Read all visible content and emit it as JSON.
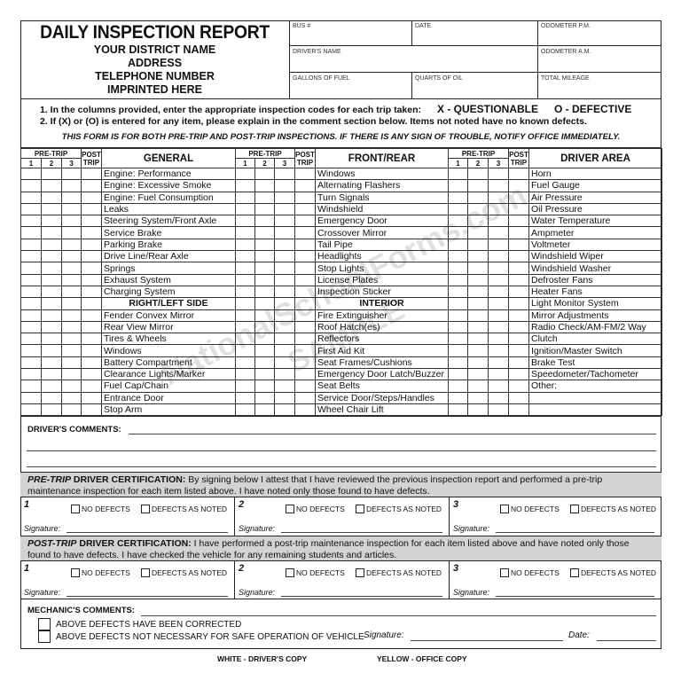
{
  "header": {
    "title": "DAILY INSPECTION REPORT",
    "district_lines": [
      "YOUR DISTRICT NAME",
      "ADDRESS",
      "TELEPHONE NUMBER",
      "IMPRINTED HERE"
    ],
    "fields": {
      "bus": "BUS #",
      "date": "DATE",
      "odometer_pm": "ODOMETER P.M.",
      "drivers_name": "DRIVER'S NAME",
      "odometer_am": "ODOMETER A.M.",
      "gallons_fuel": "GALLONS OF FUEL",
      "quarts_oil": "QUARTS OF OIL",
      "total_mileage": "TOTAL MILEAGE"
    }
  },
  "instructions": {
    "line1": "1.  In the columns provided, enter the appropriate inspection codes for each trip taken:",
    "code_x": "X - QUESTIONABLE",
    "code_o": "O - DEFECTIVE",
    "line2": "2.  If  (X)  or  (O)  is entered for any item, please explain in the comment section below.  Items not noted have no known defects.",
    "note": "THIS FORM IS FOR BOTH PRE-TRIP AND POST-TRIP INSPECTIONS.  IF THERE IS ANY SIGN OF TROUBLE, NOTIFY OFFICE IMMEDIATELY."
  },
  "table": {
    "pre_trip": "PRE-TRIP",
    "post": "POST",
    "trip": "TRIP",
    "trip_numbers": [
      "1",
      "2",
      "3"
    ],
    "sections": [
      {
        "heading": "GENERAL",
        "items": [
          "Engine:   Performance",
          "Engine:   Excessive Smoke",
          "Engine:   Fuel Consumption",
          "Leaks",
          "Steering System/Front Axle",
          "Service Brake",
          "Parking Brake",
          "Drive Line/Rear Axle",
          "Springs",
          "Exhaust System",
          "Charging System",
          "#RIGHT/LEFT SIDE",
          "Fender Convex Mirror",
          "Rear View Mirror",
          "Tires & Wheels",
          "Windows",
          "Battery Compartment",
          "Clearance Lights/Marker",
          "Fuel Cap/Chain",
          "Entrance Door",
          "Stop Arm"
        ]
      },
      {
        "heading": "FRONT/REAR",
        "items": [
          "Windows",
          "Alternating Flashers",
          "Turn Signals",
          "Windshield",
          "Emergency Door",
          "Crossover Mirror",
          "Tail Pipe",
          "Headlights",
          "Stop Lights",
          "License Plates",
          "Inspection Sticker",
          "#INTERIOR",
          "Fire Extinguisher",
          "Roof Hatch(es)",
          "Reflectors",
          "First Aid Kit",
          "Seat Frames/Cushions",
          "Emergency Door Latch/Buzzer",
          "Seat Belts",
          "Service Door/Steps/Handles",
          "Wheel Chair Lift"
        ]
      },
      {
        "heading": "DRIVER AREA",
        "items": [
          "Horn",
          "Fuel Gauge",
          "Air Pressure",
          "Oil Pressure",
          "Water Temperature",
          "Ampmeter",
          "Voltmeter",
          "Windshield Wiper",
          "Windshield Washer",
          "Defroster Fans",
          "Heater Fans",
          "Light Monitor System",
          "Mirror Adjustments",
          "Radio Check/AM-FM/2 Way",
          "Clutch",
          "Ignition/Master Switch",
          "Brake Test",
          "Speedometer/Tachometer",
          "Other:",
          "",
          ""
        ]
      }
    ]
  },
  "drivers_comments": "DRIVER'S COMMENTS:",
  "pre_cert": {
    "label_italic": "PRE-TRIP",
    "label": " DRIVER CERTIFICATION:",
    "text": "  By signing below I attest that I have reviewed the previous inspection report and performed a pre-trip maintenance inspection for each item listed above.  I have noted only those found to have defects."
  },
  "post_cert": {
    "label_italic": "POST-TRIP",
    "label": " DRIVER CERTIFICATION:",
    "text": "  I have performed a post-trip maintenance inspection for each item listed above and have noted only those found to have defects.  I have checked the vehicle for any remaining students and articles."
  },
  "cert_common": {
    "numbers": [
      "1",
      "2",
      "3"
    ],
    "no_defects": "NO DEFECTS",
    "defects_noted": "DEFECTS AS NOTED",
    "signature": "Signature:"
  },
  "mechanic": {
    "label": "MECHANIC'S COMMENTS:",
    "corrected": "ABOVE DEFECTS HAVE BEEN CORRECTED",
    "not_necessary": "ABOVE DEFECTS NOT NECESSARY FOR SAFE OPERATION OF VEHICLE",
    "signature": "Signature:",
    "date": "Date:"
  },
  "footer": {
    "white": "WHITE - DRIVER'S COPY",
    "yellow": "YELLOW - OFFICE COPY"
  },
  "watermark": {
    "site": "NationalSchoolForms.com",
    "sample": "SAMPLE"
  }
}
